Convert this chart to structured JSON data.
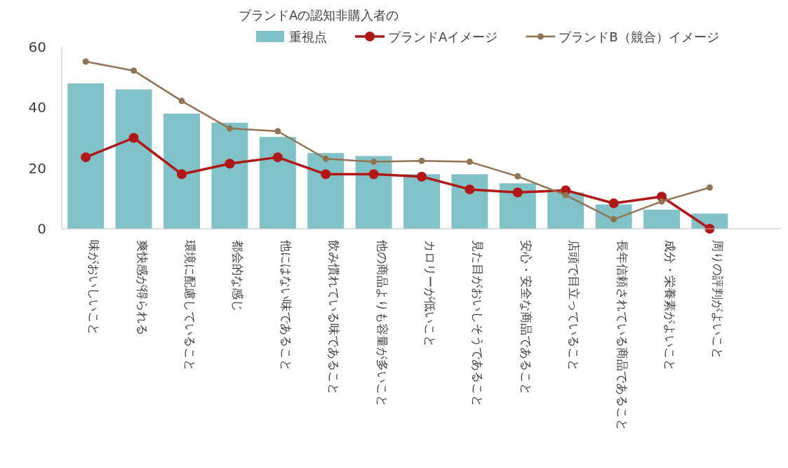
{
  "chart_data": {
    "type": "bar",
    "title": "ブランドAの認知非購入者の",
    "legend": "top",
    "marker": "circle",
    "grid": false,
    "categories": [
      "味がおいしいこと",
      "爽快感が得られる",
      "環境に配慮していること",
      "都会的な感じ",
      "他にはない味であること",
      "飲み慣れている味であること",
      "他の商品よりも容量が多いこと",
      "カロリーが低いこと",
      "見た目がおいしそうであること",
      "安心・安全な商品であること",
      "店頭で目立っていること",
      "長年信頼されている商品であること",
      "成分・栄養素がよいこと",
      "周りの評判がよいこと"
    ],
    "ylim": [
      0,
      60
    ],
    "yticks": [
      0,
      20,
      40,
      60
    ],
    "series": [
      {
        "name": "重視点",
        "color": "#80c2c7",
        "values": [
          48,
          46,
          38,
          35,
          30.3,
          25,
          24,
          18,
          18,
          15,
          12,
          8,
          6.3,
          5
        ]
      },
      {
        "name": "ブランドAイメージ",
        "type": "line",
        "color": "#b01818",
        "values": [
          23.6,
          30,
          18,
          21.5,
          23.6,
          18,
          18,
          17.2,
          13,
          12,
          12.7,
          8.4,
          10.6,
          0
        ]
      },
      {
        "name": "ブランドB（競合）イメージ",
        "type": "line",
        "color": "#927352",
        "values": [
          55.2,
          52.2,
          42.2,
          33.1,
          32.2,
          23.1,
          22.1,
          22.4,
          22.1,
          17.3,
          11.1,
          3.1,
          9,
          13.6
        ]
      }
    ]
  }
}
